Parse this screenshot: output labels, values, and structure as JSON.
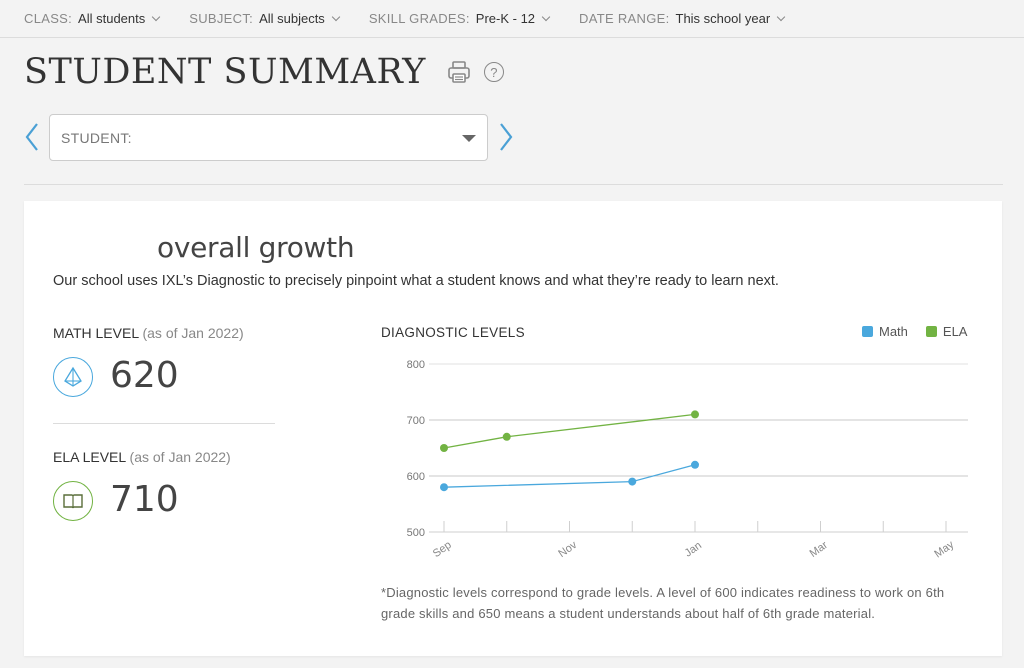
{
  "filters": [
    {
      "label": "CLASS:",
      "value": "All students"
    },
    {
      "label": "SUBJECT:",
      "value": "All subjects"
    },
    {
      "label": "SKILL GRADES:",
      "value": "Pre-K - 12"
    },
    {
      "label": "DATE RANGE:",
      "value": "This school year"
    }
  ],
  "page": {
    "title": "STUDENT SUMMARY",
    "help": "?"
  },
  "student_select": {
    "label": "STUDENT:"
  },
  "card": {
    "title": "overall growth",
    "description": "Our school uses IXL’s Diagnostic to precisely pinpoint what a student knows and what they’re ready to learn next.",
    "math": {
      "label": "MATH LEVEL",
      "asof": "(as of Jan 2022)",
      "value": "620",
      "icon": "pyramid-icon"
    },
    "ela": {
      "label": "ELA LEVEL",
      "asof": "(as of Jan 2022)",
      "value": "710",
      "icon": "book-icon"
    },
    "footnote": "*Diagnostic levels correspond to grade levels. A level of 600 indicates readiness to work on 6th grade skills and 650 means a student understands about half of 6th grade material."
  },
  "colors": {
    "math": "#4aa8dd",
    "ela": "#72b343",
    "grid": "#cfcfcf",
    "accent": "#4aa0d5"
  },
  "chart_data": {
    "type": "line",
    "title": "DIAGNOSTIC LEVELS",
    "x_ticks": [
      "Sep",
      "Nov",
      "Jan",
      "Mar",
      "May"
    ],
    "y_ticks": [
      500,
      600,
      700,
      800
    ],
    "ylim": [
      500,
      800
    ],
    "xlim": [
      "Sep",
      "May"
    ],
    "grid": true,
    "legend": "top-right",
    "series": [
      {
        "name": "Math",
        "color": "#4aa8dd",
        "points": [
          {
            "x": "Sep",
            "y": 580
          },
          {
            "x": "Dec",
            "y": 590
          },
          {
            "x": "Jan",
            "y": 620
          }
        ]
      },
      {
        "name": "ELA",
        "color": "#72b343",
        "points": [
          {
            "x": "Sep",
            "y": 650
          },
          {
            "x": "Oct",
            "y": 670
          },
          {
            "x": "Jan",
            "y": 710
          }
        ]
      }
    ]
  }
}
